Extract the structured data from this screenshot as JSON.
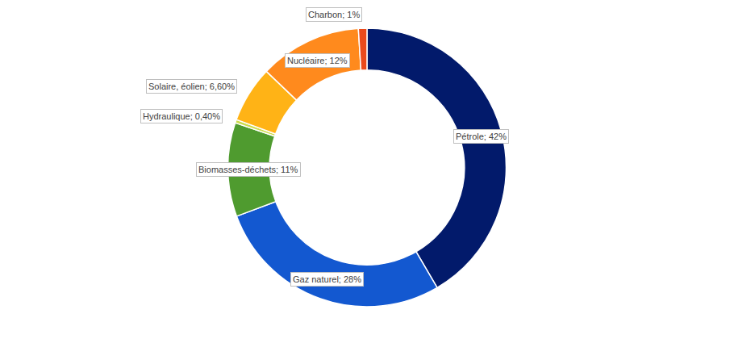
{
  "chart_data": {
    "type": "donut",
    "categories": [
      "Pétrole",
      "Gaz naturel",
      "Biomasses-déchets",
      "Hydraulique",
      "Solaire, éolien",
      "Nucléaire",
      "Charbon"
    ],
    "values": [
      42,
      28,
      11,
      0.4,
      6.6,
      12,
      1
    ],
    "value_labels": [
      "Pétrole; 42%",
      "Gaz naturel; 28%",
      "Biomasses-déchets; 11%",
      "Hydraulique; 0,40%",
      "Solaire, éolien; 6,60%",
      "Nucléaire; 12%",
      "Charbon; 1%"
    ],
    "colors": [
      "#021a6b",
      "#1358d0",
      "#4f9b2f",
      "#cddc4c",
      "#ffb316",
      "#ff8a1d",
      "#ea4a1c"
    ],
    "data_labels": true
  }
}
